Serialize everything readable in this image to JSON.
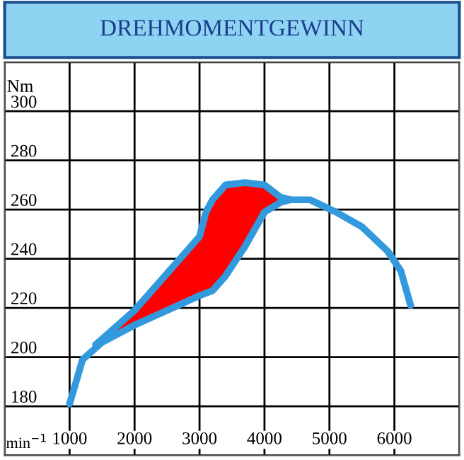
{
  "chart_data": {
    "type": "line",
    "title": "DREHMOMENTGEWINN",
    "xlabel": "min$^{−1}$",
    "ylabel": "Nm",
    "xlim": [
      0,
      7000
    ],
    "ylim": [
      160,
      320
    ],
    "xticks": [
      {
        "value": 0,
        "label": null
      },
      1000,
      2000,
      3000,
      4000,
      5000,
      6000,
      {
        "value": 7000,
        "label": null
      }
    ],
    "yticks": [
      {
        "value": 160,
        "label": null
      },
      180,
      200,
      220,
      240,
      260,
      280,
      300,
      {
        "value": 320,
        "label": null
      }
    ],
    "grid": true,
    "marker": "none",
    "line_style": "solid",
    "series": [
      {
        "color": "#3399dd",
        "x": [
          1000,
          1200,
          1500,
          2000,
          2500,
          3000,
          3200,
          3400,
          3700,
          4000,
          4250,
          4400,
          4700,
          5100,
          5500,
          5900,
          6100,
          6250
        ],
        "values": [
          181,
          199,
          206,
          213,
          219,
          225,
          227,
          233,
          245,
          259,
          263,
          264,
          264,
          259,
          253,
          243,
          235,
          221
        ]
      },
      {
        "type": "area",
        "color": "#ff0000",
        "x": [
          1400,
          1700,
          2000,
          2500,
          3000,
          3100,
          3200,
          3400,
          3700,
          4000,
          4250,
          4400
        ],
        "values": [
          205,
          212,
          219,
          234,
          249,
          259,
          264,
          270,
          271,
          270,
          265,
          264
        ]
      },
      {
        "color": "#3399dd",
        "x": [
          1400,
          1700,
          2000,
          2500,
          3000,
          3100,
          3200,
          3400,
          3700,
          4000,
          4250,
          4400
        ],
        "values": [
          205,
          212,
          219,
          234,
          249,
          259,
          264,
          270,
          271,
          270,
          265,
          264
        ]
      }
    ]
  }
}
